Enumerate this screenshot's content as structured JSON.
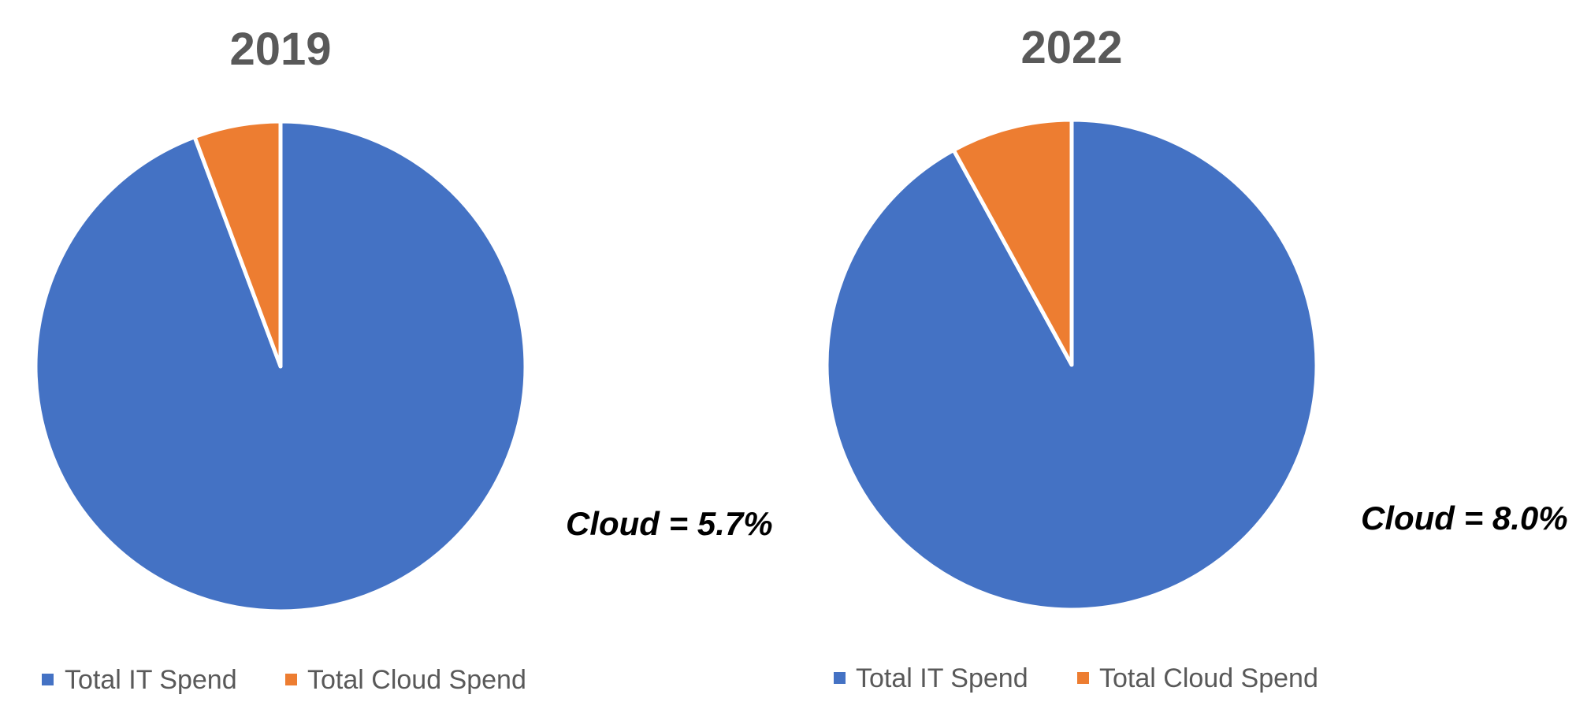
{
  "chart_data": [
    {
      "type": "pie",
      "title": "2019",
      "categories": [
        "Total IT Spend",
        "Total Cloud Spend"
      ],
      "values": [
        94.3,
        5.7
      ],
      "colors": [
        "#4472C4",
        "#ED7D31"
      ],
      "annotation": "Cloud = 5.7%",
      "legend": "bottom"
    },
    {
      "type": "pie",
      "title": "2022",
      "categories": [
        "Total IT Spend",
        "Total Cloud Spend"
      ],
      "values": [
        92.0,
        8.0
      ],
      "colors": [
        "#4472C4",
        "#ED7D31"
      ],
      "annotation": "Cloud = 8.0%",
      "legend": "bottom"
    }
  ]
}
